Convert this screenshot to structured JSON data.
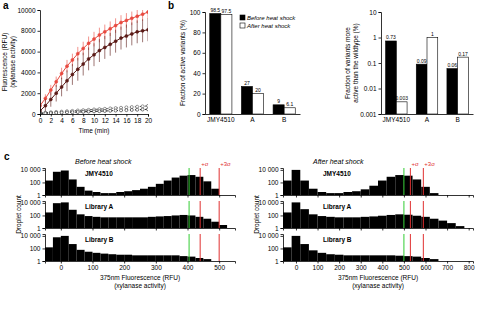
{
  "chart_data": [
    {
      "type": "line",
      "panel_label": "a",
      "x_label": "Time (min)",
      "y_label": [
        "Fluorescence (RFU)",
        "(xylanase activity)"
      ],
      "x": [
        0,
        1,
        2,
        3,
        4,
        5,
        6,
        7,
        8,
        9,
        10,
        11,
        12,
        13,
        14,
        15,
        16,
        17,
        18,
        19,
        20
      ],
      "xlim": [
        0,
        20
      ],
      "xticks": [
        0,
        2,
        4,
        6,
        8,
        10,
        12,
        14,
        16,
        18,
        20
      ],
      "ylim": [
        0,
        10000
      ],
      "yticks": [
        0,
        2000,
        4000,
        6000,
        8000,
        10000
      ],
      "series": [
        {
          "color": "#e8493f",
          "marker": "circle",
          "line_style": "solid",
          "values": [
            800,
            1500,
            2300,
            3100,
            3900,
            4600,
            5200,
            5800,
            6300,
            6800,
            7200,
            7600,
            7900,
            8200,
            8500,
            8800,
            9000,
            9200,
            9400,
            9600,
            9800
          ],
          "errors": [
            300,
            400,
            500,
            500,
            550,
            600,
            600,
            650,
            650,
            650,
            700,
            700,
            700,
            700,
            700,
            700,
            700,
            650,
            650,
            650,
            650
          ]
        },
        {
          "color": "#5a1a16",
          "marker": "circle",
          "line_style": "solid",
          "values": [
            300,
            800,
            1400,
            2000,
            2600,
            3200,
            3800,
            4300,
            4800,
            5300,
            5700,
            6100,
            6400,
            6700,
            7000,
            7300,
            7500,
            7700,
            7900,
            8000,
            8100
          ],
          "errors": [
            400,
            600,
            700,
            800,
            900,
            1000,
            1000,
            1100,
            1100,
            1100,
            1100,
            1100,
            1100,
            1100,
            1100,
            1100,
            1100,
            1100,
            1100,
            1100,
            1100
          ]
        },
        {
          "color": "#555555",
          "marker": "open_circle",
          "line_style": "dashed",
          "values": [
            100,
            130,
            170,
            200,
            230,
            270,
            300,
            340,
            370,
            400,
            440,
            470,
            500,
            540,
            570,
            600,
            640,
            670,
            700,
            740,
            780
          ]
        },
        {
          "color": "#222222",
          "marker": "open_circle",
          "line_style": "dashed",
          "values": [
            50,
            70,
            90,
            110,
            130,
            150,
            170,
            190,
            210,
            230,
            250,
            270,
            290,
            310,
            330,
            350,
            370,
            390,
            410,
            430,
            450
          ]
        }
      ]
    },
    {
      "type": "bar",
      "panel_label": "b",
      "y_label": "Fraction of active variants (%)",
      "categories": [
        "JMY4510",
        "A",
        "B"
      ],
      "ylim": [
        0,
        100
      ],
      "yticks": [
        0,
        20,
        40,
        60,
        80,
        100
      ],
      "data_labels": true,
      "legend": "top-right",
      "series": [
        {
          "name": "Before heat shock",
          "color": "#000000",
          "values": [
            98.5,
            27,
            9
          ]
        },
        {
          "name": "After heat shock",
          "color": "#ffffff",
          "values": [
            97.5,
            20,
            6.1
          ]
        }
      ]
    },
    {
      "type": "bar",
      "log": "y",
      "y_label": [
        "Fraction of variants more",
        "active than the wildtype (%)"
      ],
      "categories": [
        "JMY4510",
        "A",
        "B"
      ],
      "ylim": [
        0.001,
        10
      ],
      "yticks": [
        0.001,
        0.01,
        0.1,
        1,
        10
      ],
      "data_labels": true,
      "series": [
        {
          "color": "#000000",
          "values": [
            0.73,
            0.09,
            0.06
          ]
        },
        {
          "color": "#ffffff",
          "values": [
            0.003,
            1,
            0.17
          ]
        }
      ]
    },
    {
      "type": "histogram",
      "panel_label": "c",
      "title": "Before heat shock",
      "subtitle": "JMY4510",
      "log": "y",
      "tick_labels": "y",
      "color": "#000000",
      "bins": [
        -50,
        -25,
        0,
        25,
        50,
        75,
        100,
        125,
        150,
        175,
        200,
        225,
        250,
        275,
        300,
        325,
        350,
        375,
        400,
        425,
        450,
        475,
        500,
        525,
        550
      ],
      "counts": [
        200,
        5000,
        8000,
        300,
        20,
        5,
        3,
        2,
        2,
        3,
        4,
        6,
        10,
        20,
        60,
        200,
        600,
        1200,
        1500,
        800,
        150,
        10,
        null,
        null
      ],
      "xlim": [
        -50,
        550
      ],
      "xticks": [
        0,
        100,
        200,
        300,
        400,
        500
      ],
      "ylim": [
        1,
        20000
      ],
      "yticks": [
        1,
        100,
        {
          "value": 10000,
          "label": "10 000"
        }
      ],
      "lines": [
        {
          "x": 405,
          "color": "#33cc33"
        },
        {
          "x": 440,
          "label": "+σ",
          "color": "#e03030"
        },
        {
          "x": 500,
          "label": "+3σ",
          "color": "#e03030"
        }
      ]
    },
    {
      "type": "histogram",
      "subtitle": "Library A",
      "y_label": "Droplet count",
      "log": "y",
      "tick_labels": "y",
      "color": "#000000",
      "bins": [
        -50,
        -25,
        0,
        25,
        50,
        75,
        100,
        125,
        150,
        175,
        200,
        225,
        250,
        275,
        300,
        325,
        350,
        375,
        400,
        425,
        450,
        475,
        500,
        525,
        550
      ],
      "counts": [
        300,
        9000,
        12000,
        800,
        150,
        80,
        60,
        50,
        50,
        50,
        50,
        50,
        50,
        60,
        70,
        80,
        100,
        120,
        100,
        60,
        30,
        10,
        3,
        null
      ],
      "xlim": [
        -50,
        550
      ],
      "xticks": [
        0,
        100,
        200,
        300,
        400,
        500
      ],
      "ylim": [
        1,
        20000
      ],
      "yticks": [
        1,
        100,
        {
          "value": 10000,
          "label": "10 000"
        }
      ],
      "lines": [
        {
          "x": 405,
          "color": "#33cc33"
        },
        {
          "x": 440,
          "color": "#e03030"
        },
        {
          "x": 500,
          "color": "#e03030"
        }
      ]
    },
    {
      "type": "histogram",
      "subtitle": "Library B",
      "x_label": [
        "375nm Fluorescence (RFU)",
        "(xylanase activity)"
      ],
      "log": "y",
      "color": "#000000",
      "bins": [
        -50,
        -25,
        0,
        25,
        50,
        75,
        100,
        125,
        150,
        175,
        200,
        225,
        250,
        275,
        300,
        325,
        350,
        375,
        400,
        425,
        450,
        475,
        500,
        525,
        550
      ],
      "counts": [
        150,
        6000,
        10000,
        500,
        60,
        30,
        20,
        15,
        12,
        10,
        10,
        8,
        8,
        8,
        8,
        8,
        8,
        6,
        5,
        3,
        2,
        1,
        null,
        null
      ],
      "xlim": [
        -50,
        550
      ],
      "xticks": [
        0,
        100,
        200,
        300,
        400,
        500
      ],
      "ylim": [
        1,
        20000
      ],
      "yticks": [
        1,
        100,
        {
          "value": 10000,
          "label": "10 000"
        }
      ],
      "lines": [
        {
          "x": 405,
          "color": "#33cc33"
        },
        {
          "x": 440,
          "color": "#e03030"
        },
        {
          "x": 500,
          "color": "#e03030"
        }
      ]
    },
    {
      "type": "histogram",
      "title": "After heat shock",
      "subtitle": "JMY4510",
      "log": "y",
      "tick_labels": "y",
      "color": "#000000",
      "bins": [
        -60,
        -20,
        20,
        60,
        100,
        140,
        180,
        220,
        260,
        300,
        340,
        380,
        420,
        460,
        500,
        540,
        580,
        620,
        660,
        700,
        740,
        780,
        820
      ],
      "counts": [
        200,
        10000,
        200,
        10,
        3,
        2,
        2,
        3,
        4,
        8,
        30,
        200,
        800,
        1500,
        1200,
        300,
        20,
        2,
        null,
        null,
        null,
        null
      ],
      "xlim": [
        -60,
        820
      ],
      "xticks": [
        0,
        100,
        200,
        300,
        400,
        500,
        600,
        700,
        800
      ],
      "ylim": [
        1,
        20000
      ],
      "yticks": [
        1,
        100,
        {
          "value": 10000,
          "label": "10 000"
        }
      ],
      "lines": [
        {
          "x": 500,
          "color": "#33cc33"
        },
        {
          "x": 530,
          "label": "+σ",
          "color": "#e03030"
        },
        {
          "x": 590,
          "label": "+3σ",
          "color": "#e03030"
        }
      ]
    },
    {
      "type": "histogram",
      "subtitle": "Library A",
      "y_label": "Droplet count",
      "log": "y",
      "tick_labels": "y",
      "color": "#000000",
      "bins": [
        -60,
        -20,
        20,
        60,
        100,
        140,
        180,
        220,
        260,
        300,
        340,
        380,
        420,
        460,
        500,
        540,
        580,
        620,
        660,
        700,
        740,
        780,
        820
      ],
      "counts": [
        300,
        12000,
        1000,
        150,
        80,
        60,
        50,
        50,
        50,
        60,
        70,
        90,
        120,
        150,
        130,
        90,
        60,
        30,
        15,
        6,
        2,
        1
      ],
      "xlim": [
        -60,
        820
      ],
      "xticks": [
        0,
        100,
        200,
        300,
        400,
        500,
        600,
        700,
        800
      ],
      "ylim": [
        1,
        20000
      ],
      "yticks": [
        1,
        100,
        {
          "value": 10000,
          "label": "10 000"
        }
      ],
      "lines": [
        {
          "x": 500,
          "color": "#33cc33"
        },
        {
          "x": 530,
          "color": "#e03030"
        },
        {
          "x": 590,
          "color": "#e03030"
        }
      ]
    },
    {
      "type": "histogram",
      "subtitle": "Library B",
      "x_label": [
        "375nm Fluorescence (RFU)",
        "(xylanase activity)"
      ],
      "log": "y",
      "color": "#000000",
      "bins": [
        -60,
        -20,
        20,
        60,
        100,
        140,
        180,
        220,
        260,
        300,
        340,
        380,
        420,
        460,
        500,
        540,
        580,
        620,
        660,
        700,
        740,
        780,
        820
      ],
      "counts": [
        150,
        10000,
        500,
        50,
        20,
        12,
        10,
        8,
        8,
        8,
        8,
        8,
        8,
        7,
        6,
        5,
        3,
        2,
        1,
        null,
        null,
        null
      ],
      "xlim": [
        -60,
        820
      ],
      "xticks": [
        0,
        100,
        200,
        300,
        400,
        500,
        600,
        700,
        800
      ],
      "ylim": [
        1,
        20000
      ],
      "yticks": [
        1,
        100,
        {
          "value": 10000,
          "label": "10 000"
        }
      ],
      "lines": [
        {
          "x": 500,
          "color": "#33cc33"
        },
        {
          "x": 530,
          "color": "#e03030"
        },
        {
          "x": 590,
          "color": "#e03030"
        }
      ]
    }
  ]
}
